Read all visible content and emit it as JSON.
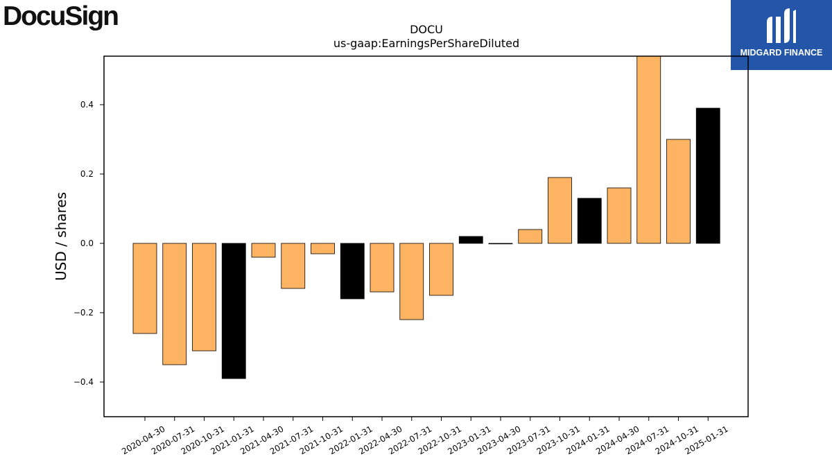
{
  "brand": {
    "logo_text": "DocuSign"
  },
  "badge": {
    "text": "MIDGARD FINANCE",
    "icon": "midgard-m-logo-icon",
    "color": "#2356a8"
  },
  "chart_data": {
    "type": "bar",
    "title": "DOCU",
    "subtitle": "us-gaap:EarningsPerShareDiluted",
    "xlabel": "",
    "ylabel": "USD / shares",
    "ylim": [
      -0.5,
      0.54
    ],
    "yticks": [
      -0.4,
      -0.2,
      0.0,
      0.2,
      0.4
    ],
    "ytick_labels": [
      "−0.4",
      "−0.2",
      "0.0",
      "0.2",
      "0.4"
    ],
    "grid": false,
    "colors": {
      "quarter": "#fdb462",
      "fiscal_year": "#000000"
    },
    "categories": [
      "2020-04-30",
      "2020-07-31",
      "2020-10-31",
      "2021-01-31",
      "2021-04-30",
      "2021-07-31",
      "2021-10-31",
      "2022-01-31",
      "2022-04-30",
      "2022-07-31",
      "2022-10-31",
      "2023-01-31",
      "2023-04-30",
      "2023-07-31",
      "2023-10-31",
      "2024-01-31",
      "2024-04-30",
      "2024-07-31",
      "2024-10-31",
      "2025-01-31"
    ],
    "values": [
      -0.26,
      -0.35,
      -0.31,
      -0.39,
      -0.04,
      -0.13,
      -0.03,
      -0.16,
      -0.14,
      -0.22,
      -0.15,
      0.02,
      0.0,
      0.04,
      0.19,
      0.13,
      0.16,
      0.55,
      0.3,
      0.39
    ],
    "highlight": [
      false,
      false,
      false,
      true,
      false,
      false,
      false,
      true,
      false,
      false,
      false,
      true,
      false,
      false,
      false,
      true,
      false,
      false,
      false,
      true
    ]
  }
}
